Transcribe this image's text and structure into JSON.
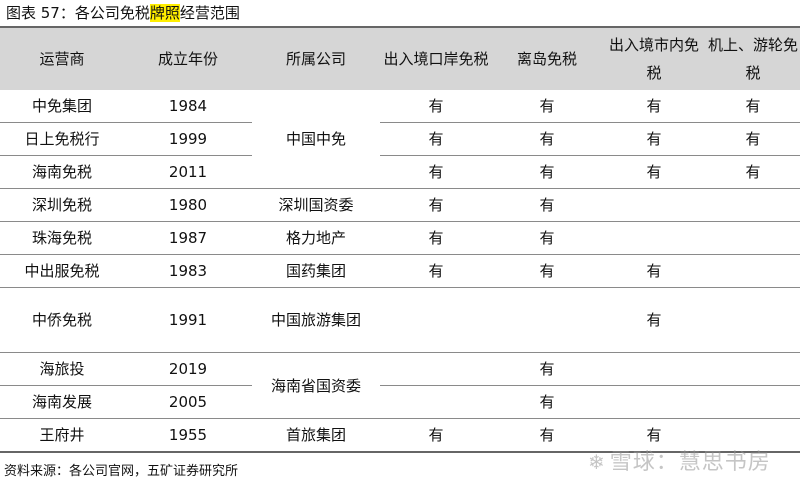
{
  "caption": {
    "prefix": "图表 57：各公司免税",
    "highlight": "牌照",
    "suffix": "经营范围"
  },
  "headers": [
    "运营商",
    "成立年份",
    "所属公司",
    "出入境口岸免税",
    "离岛免税",
    "出入境市内免税",
    "机上、游轮免税"
  ],
  "rows": [
    {
      "operator": "中免集团",
      "year": "1984",
      "group": "中国中免",
      "port": "有",
      "island": "有",
      "city": "有",
      "air_ship": "有"
    },
    {
      "operator": "日上免税行",
      "year": "1999",
      "group": "中国中免",
      "port": "有",
      "island": "有",
      "city": "有",
      "air_ship": "有"
    },
    {
      "operator": "海南免税",
      "year": "2011",
      "group": "中国中免",
      "port": "有",
      "island": "有",
      "city": "有",
      "air_ship": "有"
    },
    {
      "operator": "深圳免税",
      "year": "1980",
      "group": "深圳国资委",
      "port": "有",
      "island": "有",
      "city": "",
      "air_ship": ""
    },
    {
      "operator": "珠海免税",
      "year": "1987",
      "group": "格力地产",
      "port": "有",
      "island": "有",
      "city": "",
      "air_ship": ""
    },
    {
      "operator": "中出服免税",
      "year": "1983",
      "group": "国药集团",
      "port": "有",
      "island": "有",
      "city": "有",
      "air_ship": ""
    },
    {
      "operator": "中侨免税",
      "year": "1991",
      "group": "中国旅游集团",
      "port": "",
      "island": "",
      "city": "有",
      "air_ship": ""
    },
    {
      "operator": "海旅投",
      "year": "2019",
      "group": "海南省国资委",
      "port": "",
      "island": "有",
      "city": "",
      "air_ship": ""
    },
    {
      "operator": "海南发展",
      "year": "2005",
      "group": "海南省国资委",
      "port": "",
      "island": "有",
      "city": "",
      "air_ship": ""
    },
    {
      "operator": "王府井",
      "year": "1955",
      "group": "首旅集团",
      "port": "有",
      "island": "有",
      "city": "有",
      "air_ship": ""
    }
  ],
  "source": "资料来源：各公司官网，五矿证券研究所",
  "watermark": {
    "logo": "❄",
    "text": "雪球：慧思书房"
  }
}
